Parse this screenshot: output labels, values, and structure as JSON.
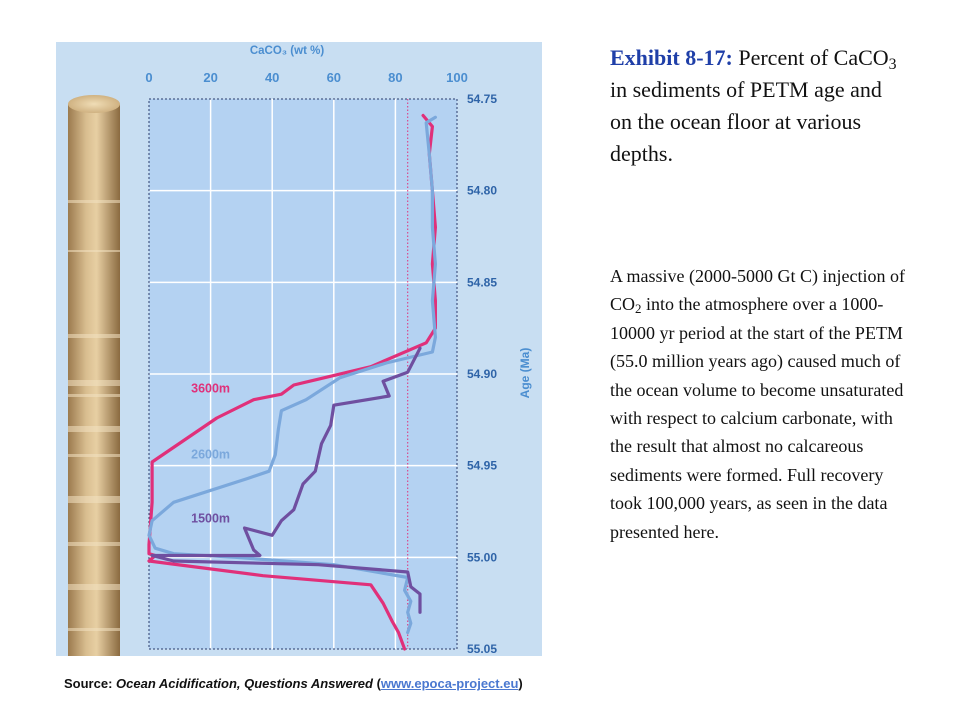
{
  "header": {
    "exhibit_label": "Exhibit 8-17:",
    "title_pre": "Percent of CaCO",
    "title_sub": "3",
    "title_post": " in sediments of PETM age and on the ocean floor at various depths."
  },
  "body": {
    "text_pre": "A massive (2000-5000 Gt C) injection of CO",
    "text_sub": "2",
    "text_post": " into the atmosphere over a 1000-10000 yr period at the start of the PETM (55.0 million years ago) caused much of the ocean volume to become unsaturated with respect to calcium carbonate, with the result that almost no calcareous sediments were formed. Full recovery took 100,000 years, as seen in the data presented here."
  },
  "source": {
    "prefix": "Source: ",
    "title": "Ocean Acidification, Questions Answered",
    "open": " (",
    "link_text": "www.epoca-project.eu",
    "close": ")"
  },
  "colors": {
    "panel_bg": "#c8def2",
    "plot_bg": "#b4d2f2",
    "grid": "#ffffff",
    "axis_label": "#4b8ed0",
    "series_3600m": "#e0307a",
    "series_2600m": "#7ba8dc",
    "series_1500m": "#6f4fa0",
    "title_accent": "#1f3fa8"
  },
  "chart_data": {
    "type": "line",
    "xlabel": "CaCO₃ (wt %)",
    "ylabel": "Age (Ma)",
    "xlim": [
      0,
      100
    ],
    "ylim": [
      54.75,
      55.05
    ],
    "y_inverted": true,
    "x_ticks": [
      "0",
      "20",
      "40",
      "60",
      "80",
      "100"
    ],
    "y_ticks": [
      "54.75",
      "54.80",
      "54.85",
      "54.90",
      "54.95",
      "55.00",
      "55.05"
    ],
    "grid": true,
    "reference_line_x": 84,
    "series": [
      {
        "name": "3600m",
        "points": [
          [
            89,
            54.759
          ],
          [
            92,
            54.765
          ],
          [
            91,
            54.78
          ],
          [
            92,
            54.8
          ],
          [
            93,
            54.82
          ],
          [
            92,
            54.84
          ],
          [
            93,
            54.86
          ],
          [
            93,
            54.875
          ],
          [
            90,
            54.883
          ],
          [
            72,
            54.896
          ],
          [
            47,
            54.906
          ],
          [
            43,
            54.911
          ],
          [
            34,
            54.914
          ],
          [
            22,
            54.924
          ],
          [
            1,
            54.948
          ],
          [
            1,
            54.95
          ],
          [
            1,
            54.97
          ],
          [
            0,
            54.993
          ],
          [
            0,
            54.998
          ],
          [
            2,
            54.999
          ],
          [
            0,
            55.002
          ],
          [
            37,
            55.01
          ],
          [
            72,
            55.015
          ],
          [
            76,
            55.025
          ],
          [
            79,
            55.035
          ],
          [
            81,
            55.041
          ],
          [
            83,
            55.05
          ]
        ]
      },
      {
        "name": "2600m",
        "points": [
          [
            93,
            54.76
          ],
          [
            90,
            54.763
          ],
          [
            91,
            54.78
          ],
          [
            92,
            54.8
          ],
          [
            92,
            54.82
          ],
          [
            93,
            54.84
          ],
          [
            92,
            54.86
          ],
          [
            93,
            54.88
          ],
          [
            92,
            54.888
          ],
          [
            77,
            54.894
          ],
          [
            62,
            54.902
          ],
          [
            51,
            54.914
          ],
          [
            43,
            54.92
          ],
          [
            42,
            54.93
          ],
          [
            41,
            54.944
          ],
          [
            39,
            54.953
          ],
          [
            32,
            54.957
          ],
          [
            8,
            54.97
          ],
          [
            1,
            54.98
          ],
          [
            0,
            54.988
          ],
          [
            2,
            54.995
          ],
          [
            8,
            54.998
          ],
          [
            28,
            55.0
          ],
          [
            60,
            55.004
          ],
          [
            84,
            55.011
          ],
          [
            83,
            55.018
          ],
          [
            85,
            55.024
          ],
          [
            84,
            55.03
          ],
          [
            85,
            55.036
          ],
          [
            84,
            55.041
          ]
        ]
      },
      {
        "name": "1500m",
        "points": [
          [
            88,
            54.886
          ],
          [
            84,
            54.899
          ],
          [
            76,
            54.904
          ],
          [
            78,
            54.912
          ],
          [
            60,
            54.917
          ],
          [
            59,
            54.928
          ],
          [
            56,
            54.938
          ],
          [
            54,
            54.953
          ],
          [
            50,
            54.96
          ],
          [
            47,
            54.974
          ],
          [
            43,
            54.98
          ],
          [
            40,
            54.988
          ],
          [
            31,
            54.984
          ],
          [
            34,
            54.996
          ],
          [
            36,
            54.999
          ],
          [
            1,
            54.999
          ],
          [
            8,
            55.002
          ],
          [
            55,
            55.004
          ],
          [
            84,
            55.008
          ],
          [
            85,
            55.016
          ],
          [
            88,
            55.02
          ],
          [
            88,
            55.03
          ]
        ]
      }
    ]
  }
}
